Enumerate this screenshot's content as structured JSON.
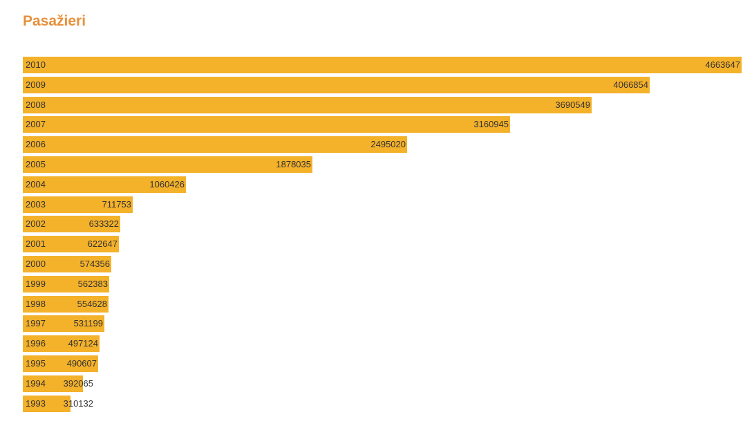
{
  "chart_data": {
    "type": "bar",
    "orientation": "horizontal",
    "title": "Pasažieri",
    "xlabel": "",
    "ylabel": "",
    "grid": false,
    "bar_color": "#f4b12a",
    "categories": [
      "2010",
      "2009",
      "2008",
      "2007",
      "2006",
      "2005",
      "2004",
      "2003",
      "2002",
      "2001",
      "2000",
      "1999",
      "1998",
      "1997",
      "1996",
      "1995",
      "1994",
      "1993"
    ],
    "values": [
      4663647,
      4066854,
      3690549,
      3160945,
      2495020,
      1878035,
      1060426,
      711753,
      633322,
      622647,
      574356,
      562383,
      554628,
      531199,
      497124,
      490607,
      392065,
      310132
    ],
    "value_labels": [
      "4663647",
      "4066854",
      "3690549",
      "3160945",
      "2495020",
      "1878035",
      "1060426",
      "711753",
      "633322",
      "622647",
      "574356",
      "562383",
      "554628",
      "531199",
      "497124",
      "490607",
      "392065",
      "310132"
    ]
  }
}
